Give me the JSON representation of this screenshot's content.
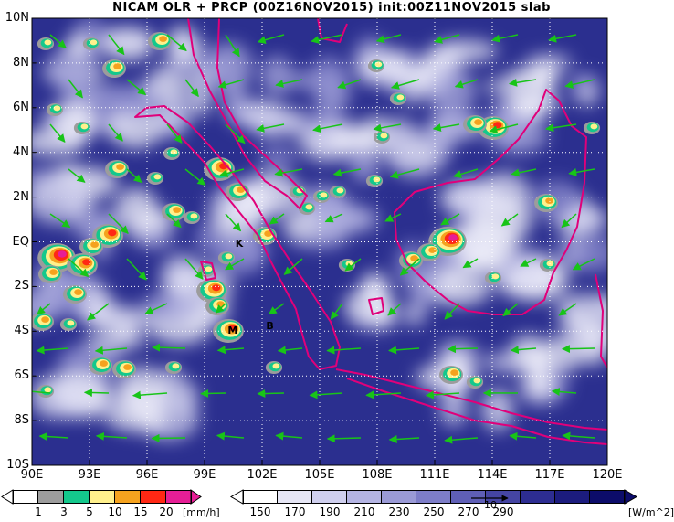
{
  "title": "NICAM OLR + PRCP (00Z16NOV2015) init:00Z11NOV2015 slab",
  "map": {
    "lat_labels": [
      "10N",
      "8N",
      "6N",
      "4N",
      "2N",
      "EQ",
      "2S",
      "4S",
      "6S",
      "8S",
      "10S"
    ],
    "lon_labels": [
      "90E",
      "93E",
      "96E",
      "99E",
      "102E",
      "105E",
      "108E",
      "111E",
      "114E",
      "117E",
      "120E"
    ],
    "place_labels": [
      {
        "text": "K",
        "lon": 100.8,
        "lat": -0.1
      },
      {
        "text": "M",
        "lon": 100.4,
        "lat": -4.0
      },
      {
        "text": "B",
        "lon": 102.4,
        "lat": -3.8
      }
    ],
    "colors": {
      "ocean_blue": "#2b2f8f",
      "cloud_white": "#f2f2fb",
      "coast": "#e0007a",
      "wind": "#18c418"
    }
  },
  "prcp_colorbar": {
    "ticks": [
      "1",
      "3",
      "5",
      "10",
      "15",
      "20"
    ],
    "unit": "[mm/h]",
    "colors": [
      "#ffffff",
      "#9c9c9c",
      "#14c88c",
      "#fff08c",
      "#f5a21e",
      "#ff2814",
      "#e61e96"
    ]
  },
  "olr_colorbar": {
    "ticks": [
      "150",
      "170",
      "190",
      "210",
      "230",
      "250",
      "270",
      "290"
    ],
    "unit": "[W/m^2]",
    "colors": [
      "#ffffff",
      "#e6e6f5",
      "#cfcfee",
      "#b4b4e3",
      "#9a9ad6",
      "#7d7dc8",
      "#5f5fb6",
      "#4545a3",
      "#2d2d92",
      "#1c1c7e",
      "#0c0c6a"
    ]
  },
  "reference_vector": {
    "label": "10"
  }
}
